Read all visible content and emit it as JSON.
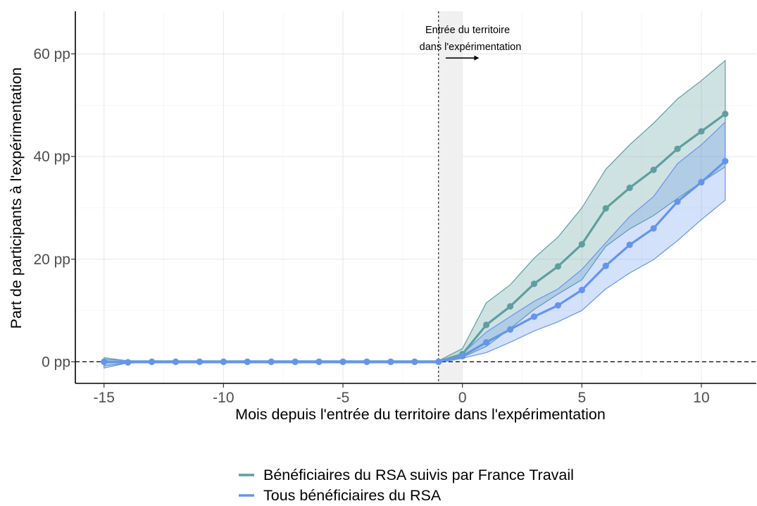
{
  "chart_data": {
    "type": "line",
    "xlabel": "Mois depuis l'entrée du territoire dans l'expérimentation",
    "ylabel": "Part de participants à l'expérimentation",
    "xlim": [
      -16.2,
      12.3
    ],
    "ylim": [
      -4.2,
      68.3
    ],
    "xticks": [
      -15,
      -10,
      -5,
      0,
      5,
      10
    ],
    "xtick_labels": [
      "-15",
      "-10",
      "-5",
      "0",
      "5",
      "10"
    ],
    "yticks": [
      0,
      20,
      40,
      60
    ],
    "ytick_labels": [
      "0 pp",
      "20 pp",
      "40 pp",
      "60 pp"
    ],
    "grid": true,
    "legend_position": "bottom",
    "reference_lines": {
      "horizontal_y": 0,
      "vertical_x": -1
    },
    "shaded_band": {
      "x_from": -1,
      "x_to": 0
    },
    "annotation": {
      "lines": [
        "Entrée du territoire",
        "dans l'expérimentation"
      ],
      "arrow_from_x": -0.7,
      "arrow_to_x": 0.7,
      "arrow_y": 59.2
    },
    "x": [
      -15,
      -14,
      -13,
      -12,
      -11,
      -10,
      -9,
      -8,
      -7,
      -6,
      -5,
      -4,
      -3,
      -2,
      -1,
      0,
      1,
      2,
      3,
      4,
      5,
      6,
      7,
      8,
      9,
      10,
      11
    ],
    "series": [
      {
        "name": "Bénéficiaires du RSA suivis par France Travail",
        "color": "#5F9EA0",
        "values": [
          0,
          -0.1,
          0,
          0,
          0,
          0,
          0,
          0,
          0,
          0,
          0,
          0,
          0,
          0,
          0,
          1.5,
          7.2,
          10.8,
          15.2,
          18.6,
          22.9,
          29.9,
          33.9,
          37.4,
          41.5,
          44.9,
          48.3
        ],
        "ci_low": [
          -0.8,
          -0.2,
          -0.2,
          -0.2,
          -0.2,
          -0.2,
          -0.2,
          -0.2,
          -0.2,
          -0.2,
          -0.2,
          -0.2,
          -0.2,
          -0.2,
          -0.2,
          0.9,
          3.0,
          6.5,
          10.2,
          13.2,
          16.0,
          22.5,
          25.9,
          28.5,
          31.8,
          35.0,
          38.0
        ],
        "ci_high": [
          0.8,
          0.2,
          0.2,
          0.2,
          0.2,
          0.2,
          0.2,
          0.2,
          0.2,
          0.2,
          0.2,
          0.2,
          0.2,
          0.2,
          0.2,
          2.6,
          11.5,
          15.0,
          20.2,
          24.3,
          30.0,
          37.5,
          42.3,
          46.5,
          51.2,
          54.8,
          58.7
        ]
      },
      {
        "name": "Tous bénéficiaires du RSA",
        "color": "#6495ED",
        "values": [
          0,
          -0.1,
          0,
          0,
          0,
          0,
          0,
          0,
          0,
          0,
          0,
          0,
          0,
          0,
          0,
          1.1,
          3.8,
          6.3,
          8.8,
          11.0,
          14.0,
          18.7,
          22.8,
          26.0,
          31.2,
          35.0,
          39.1
        ],
        "ci_low": [
          -1.2,
          -0.2,
          -0.2,
          -0.2,
          -0.2,
          -0.2,
          -0.2,
          -0.2,
          -0.2,
          -0.2,
          -0.2,
          -0.2,
          -0.2,
          -0.2,
          -0.2,
          0.7,
          1.8,
          3.8,
          6.0,
          7.8,
          10.0,
          14.2,
          17.3,
          19.9,
          23.6,
          27.7,
          31.5
        ],
        "ci_high": [
          0.5,
          0.2,
          0.2,
          0.2,
          0.2,
          0.2,
          0.2,
          0.2,
          0.2,
          0.2,
          0.2,
          0.2,
          0.2,
          0.2,
          0.2,
          1.6,
          5.8,
          8.8,
          11.8,
          14.2,
          18.0,
          23.2,
          28.3,
          32.2,
          38.6,
          42.3,
          46.7
        ]
      }
    ]
  }
}
